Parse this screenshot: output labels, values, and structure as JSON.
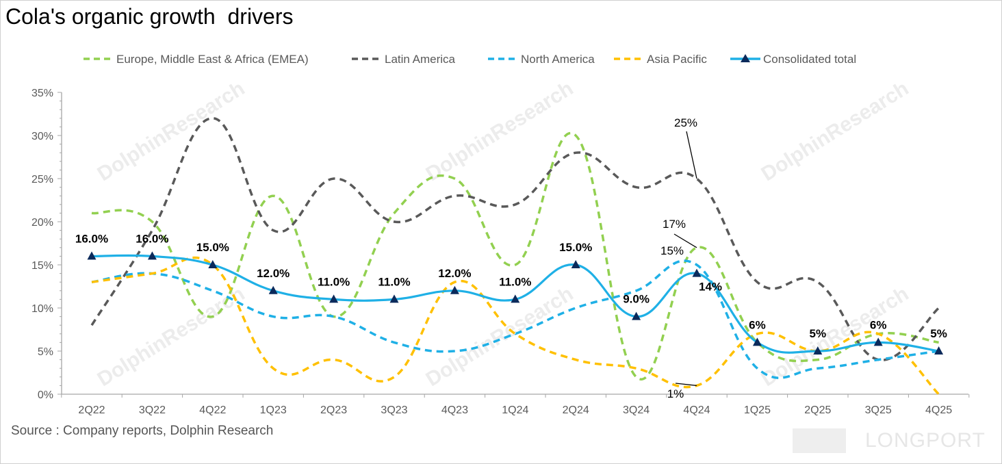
{
  "chart_data": {
    "type": "line",
    "title": "Cola's organic growth  drivers",
    "source": "Source : Company reports, Dolphin Research",
    "watermark": "DolphinResearch",
    "logo": "LONGPORT",
    "categories": [
      "2Q22",
      "3Q22",
      "4Q22",
      "1Q23",
      "2Q23",
      "3Q23",
      "4Q23",
      "1Q24",
      "2Q24",
      "3Q24",
      "4Q24",
      "1Q25",
      "2Q25",
      "3Q25",
      "4Q25"
    ],
    "yticks": [
      "0%",
      "5%",
      "10%",
      "15%",
      "20%",
      "25%",
      "30%",
      "35%"
    ],
    "ylim": [
      0,
      35
    ],
    "grid": false,
    "legend_position": "top",
    "series": [
      {
        "name": "Europe, Middle East & Africa (EMEA)",
        "color": "#92d050",
        "style": "dashed",
        "values": [
          21,
          20,
          9,
          23,
          9,
          21,
          25,
          15,
          30,
          2,
          17,
          6,
          4,
          7,
          6
        ]
      },
      {
        "name": "Latin America",
        "color": "#595959",
        "style": "dashed",
        "values": [
          8,
          19,
          32,
          19,
          25,
          20,
          23,
          22,
          28,
          24,
          25,
          13,
          13,
          4,
          10
        ]
      },
      {
        "name": "North America",
        "color": "#1fb0e6",
        "style": "dashed",
        "values": [
          13,
          14,
          12,
          9,
          9,
          6,
          5,
          7,
          10,
          12,
          15,
          3,
          3,
          4,
          5
        ]
      },
      {
        "name": "Asia Pacific",
        "color": "#ffc000",
        "style": "dashed",
        "values": [
          13,
          14,
          15,
          3,
          4,
          2,
          13,
          7,
          4,
          3,
          1,
          7,
          5,
          7,
          0
        ]
      },
      {
        "name": "Consolidated total",
        "color": "#1fb0e6",
        "style": "solid",
        "marker": "triangle",
        "values": [
          16,
          16,
          15,
          12,
          11,
          11,
          12,
          11,
          15,
          9,
          14,
          6,
          5,
          6,
          5
        ],
        "labels": [
          "16.0%",
          "16.0%",
          "15.0%",
          "12.0%",
          "11.0%",
          "11.0%",
          "12.0%",
          "11.0%",
          "15.0%",
          "9.0%",
          "14%",
          "6%",
          "5%",
          "6%",
          "5%"
        ]
      }
    ],
    "annotations": [
      {
        "text": "25%",
        "series": "Latin America",
        "category": "4Q24"
      },
      {
        "text": "17%",
        "series": "Europe, Middle East & Africa (EMEA)",
        "category": "4Q24"
      },
      {
        "text": "15%",
        "series": "North America",
        "category": "4Q24"
      },
      {
        "text": "1%",
        "series": "Asia Pacific",
        "category": "4Q24"
      }
    ]
  }
}
